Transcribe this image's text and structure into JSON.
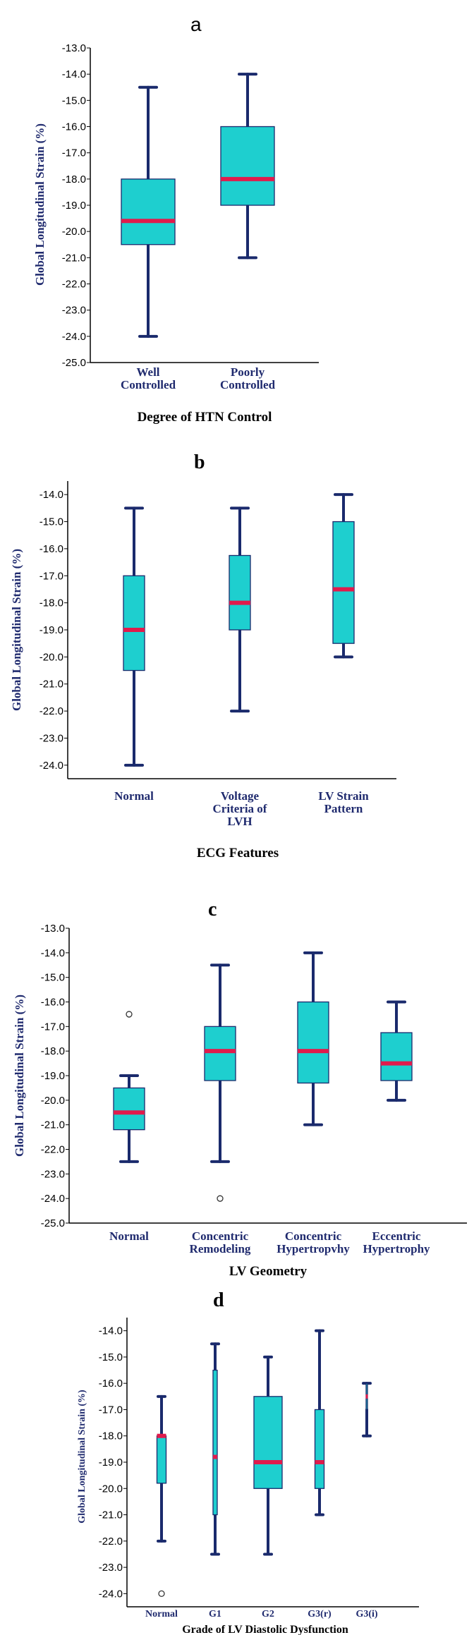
{
  "colors": {
    "box_fill": "#1ecfcf",
    "box_edge": "#1a2a6c",
    "whisker": "#1a2a6c",
    "median": "#e01b4c",
    "category_text": "#1f2a6e"
  },
  "chart_data": [
    {
      "type": "box",
      "panel_label": "a",
      "title": "",
      "xlabel": "Degree of HTN Control",
      "ylabel": "Global Longitudinal Strain (%)",
      "ylim": [
        -25.0,
        -13.0
      ],
      "yticks": [
        "-13.0",
        "-14.0",
        "-15.0",
        "-16.0",
        "-17.0",
        "-18.0",
        "-19.0",
        "-20.0",
        "-21.0",
        "-22.0",
        "-23.0",
        "-24.0",
        "-25.0"
      ],
      "categories": [
        {
          "label": [
            "Well",
            "Controlled"
          ],
          "min": -24.0,
          "q1": -20.5,
          "median": -19.6,
          "q3": -18.0,
          "max": -14.5,
          "outliers": []
        },
        {
          "label": [
            "Poorly",
            "Controlled"
          ],
          "min": -21.0,
          "q1": -19.0,
          "median": -18.0,
          "q3": -16.0,
          "max": -14.0,
          "outliers": []
        }
      ]
    },
    {
      "type": "box",
      "panel_label": "b",
      "title": "",
      "xlabel": "ECG Features",
      "ylabel": "Global Longitudinal Strain (%)",
      "ylim": [
        -24.5,
        -13.5
      ],
      "yticks": [
        "-14.0",
        "-15.0",
        "-16.0",
        "-17.0",
        "-18.0",
        "-19.0",
        "-20.0",
        "-21.0",
        "-22.0",
        "-23.0",
        "-24.0"
      ],
      "categories": [
        {
          "label": [
            "Normal"
          ],
          "min": -24.0,
          "q1": -20.5,
          "median": -19.0,
          "q3": -17.0,
          "max": -14.5,
          "outliers": []
        },
        {
          "label": [
            "Voltage",
            "Criteria of",
            "LVH"
          ],
          "min": -22.0,
          "q1": -19.0,
          "median": -18.0,
          "q3": -16.25,
          "max": -14.5,
          "outliers": []
        },
        {
          "label": [
            "LV Strain",
            "Pattern"
          ],
          "min": -20.0,
          "q1": -19.5,
          "median": -17.5,
          "q3": -15.0,
          "max": -14.0,
          "outliers": []
        }
      ]
    },
    {
      "type": "box",
      "panel_label": "c",
      "title": "",
      "xlabel": "LV Geometry",
      "ylabel": "Global Longitudinal Strain (%)",
      "ylim": [
        -25.0,
        -13.0
      ],
      "yticks": [
        "-13.0",
        "-14.0",
        "-15.0",
        "-16.0",
        "-17.0",
        "-18.0",
        "-19.0",
        "-20.0",
        "-21.0",
        "-22.0",
        "-23.0",
        "-24.0",
        "-25.0"
      ],
      "categories": [
        {
          "label": [
            "Normal"
          ],
          "min": -22.5,
          "q1": -21.2,
          "median": -20.5,
          "q3": -19.5,
          "max": -19.0,
          "outliers": [
            -16.5
          ]
        },
        {
          "label": [
            "Concentric",
            "Remodeling"
          ],
          "min": -22.5,
          "q1": -19.2,
          "median": -18.0,
          "q3": -17.0,
          "max": -14.5,
          "outliers": [
            -24.0
          ]
        },
        {
          "label": [
            "Concentric",
            "Hypertropvhy"
          ],
          "min": -21.0,
          "q1": -19.3,
          "median": -18.0,
          "q3": -16.0,
          "max": -14.0,
          "outliers": []
        },
        {
          "label": [
            "Eccentric",
            "Hypertrophy"
          ],
          "min": -20.0,
          "q1": -19.2,
          "median": -18.5,
          "q3": -17.25,
          "max": -16.0,
          "outliers": []
        }
      ]
    },
    {
      "type": "box",
      "panel_label": "d",
      "title": "",
      "xlabel": "Grade of LV Diastolic Dysfunction",
      "ylabel": "Global Longitudinal Strain (%)",
      "ylim": [
        -24.5,
        -13.5
      ],
      "yticks": [
        "-14.0",
        "-15.0",
        "-16.0",
        "-17.0",
        "-18.0",
        "-19.0",
        "-20.0",
        "-21.0",
        "-22.0",
        "-23.0",
        "-24.0"
      ],
      "categories": [
        {
          "label": [
            "Normal"
          ],
          "min": -22.0,
          "q1": -19.8,
          "median": -18.0,
          "q3": -18.0,
          "max": -16.5,
          "outliers": [
            -24.0
          ]
        },
        {
          "label": [
            "G1"
          ],
          "min": -22.5,
          "q1": -21.0,
          "median": -18.8,
          "q3": -15.5,
          "max": -14.5,
          "outliers": []
        },
        {
          "label": [
            "G2"
          ],
          "min": -22.5,
          "q1": -20.0,
          "median": -19.0,
          "q3": -16.5,
          "max": -15.0,
          "outliers": []
        },
        {
          "label": [
            "G3(r)"
          ],
          "min": -21.0,
          "q1": -20.0,
          "median": -19.0,
          "q3": -17.0,
          "max": -14.0,
          "outliers": []
        },
        {
          "label": [
            "G3(i)"
          ],
          "min": -18.0,
          "q1": -17.0,
          "median": -16.5,
          "q3": -16.0,
          "max": -16.0,
          "outliers": []
        }
      ]
    }
  ]
}
